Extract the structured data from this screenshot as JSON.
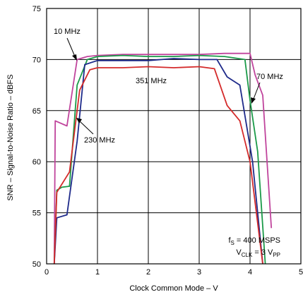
{
  "chart_data": {
    "type": "line",
    "title": "",
    "xlabel": "Clock Common Mode – V",
    "ylabel": "SNR – Signal-to-Noise Ratio – dBFS",
    "xlim": [
      0,
      5
    ],
    "ylim": [
      50,
      75
    ],
    "x_ticks": [
      "0",
      "1",
      "2",
      "3",
      "4",
      "5"
    ],
    "y_ticks": [
      "50",
      "55",
      "60",
      "65",
      "70",
      "75"
    ],
    "grid": true,
    "series": [
      {
        "name": "10 MHz",
        "color": "#c0449c",
        "points": [
          [
            0.15,
            50
          ],
          [
            0.17,
            64
          ],
          [
            0.4,
            63.5
          ],
          [
            0.6,
            70
          ],
          [
            0.8,
            70.3
          ],
          [
            1.0,
            70.4
          ],
          [
            1.5,
            70.5
          ],
          [
            2.0,
            70.5
          ],
          [
            2.5,
            70.5
          ],
          [
            3.0,
            70.5
          ],
          [
            3.5,
            70.6
          ],
          [
            4.0,
            70.6
          ],
          [
            4.1,
            68.5
          ],
          [
            4.25,
            66.5
          ],
          [
            4.42,
            53.5
          ]
        ]
      },
      {
        "name": "70 MHz",
        "color": "#1a9a48",
        "points": [
          [
            0.15,
            50
          ],
          [
            0.2,
            57.2
          ],
          [
            0.3,
            57.5
          ],
          [
            0.45,
            57.6
          ],
          [
            0.6,
            67.5
          ],
          [
            0.8,
            70
          ],
          [
            1.0,
            70.3
          ],
          [
            1.5,
            70.4
          ],
          [
            2.0,
            70.3
          ],
          [
            2.5,
            70.3
          ],
          [
            3.0,
            70.4
          ],
          [
            3.5,
            70.3
          ],
          [
            3.9,
            70
          ],
          [
            4.0,
            66
          ],
          [
            4.15,
            61
          ],
          [
            4.3,
            50
          ]
        ]
      },
      {
        "name": "230 MHz",
        "color": "#1e2a8a",
        "points": [
          [
            0.15,
            50
          ],
          [
            0.2,
            54.5
          ],
          [
            0.4,
            54.8
          ],
          [
            0.6,
            62
          ],
          [
            0.75,
            69.5
          ],
          [
            1.0,
            69.9
          ],
          [
            1.5,
            69.9
          ],
          [
            2.0,
            69.9
          ],
          [
            2.5,
            70.1
          ],
          [
            3.0,
            70
          ],
          [
            3.35,
            70
          ],
          [
            3.55,
            68.3
          ],
          [
            3.8,
            67.5
          ],
          [
            4.05,
            60
          ],
          [
            4.25,
            50
          ]
        ]
      },
      {
        "name": "351 MHz",
        "color": "#d42a2a",
        "points": [
          [
            0.15,
            50
          ],
          [
            0.2,
            57
          ],
          [
            0.45,
            59
          ],
          [
            0.65,
            67
          ],
          [
            0.85,
            69
          ],
          [
            1.0,
            69.2
          ],
          [
            1.5,
            69.2
          ],
          [
            2.0,
            69.3
          ],
          [
            2.5,
            69.2
          ],
          [
            3.0,
            69.3
          ],
          [
            3.3,
            69.1
          ],
          [
            3.55,
            65.5
          ],
          [
            3.8,
            64
          ],
          [
            4.0,
            60
          ],
          [
            4.25,
            50
          ]
        ]
      }
    ],
    "labels": {
      "l10": "10 MHz",
      "l70": "70 MHz",
      "l230": "230 MHz",
      "l351": "351 MHz"
    },
    "condition": {
      "fs_main": "f",
      "fs_sub": "S",
      "fs_value": " = 400 MSPS",
      "vclk_main": "V",
      "vclk_sub": "CLK",
      "vclk_value": " = 3 V",
      "vclk_unit_sub": "PP"
    }
  }
}
